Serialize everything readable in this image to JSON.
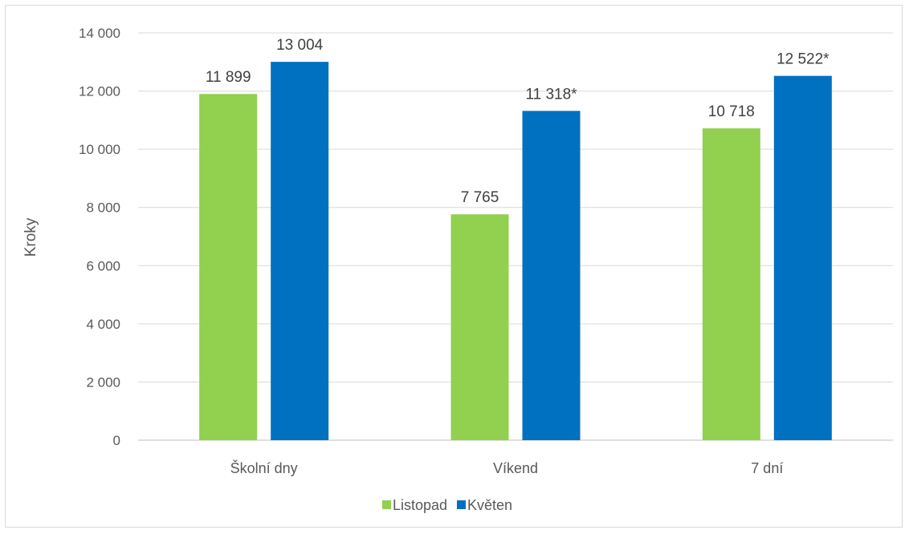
{
  "chart_data": {
    "type": "bar",
    "categories": [
      "Školní dny",
      "Víkend",
      "7 dní"
    ],
    "series": [
      {
        "name": "Listopad",
        "color": "#92d050",
        "values": [
          11899,
          7765,
          10718
        ],
        "labels": [
          "11 899",
          "7 765",
          "10 718"
        ]
      },
      {
        "name": "Květen",
        "color": "#0070c0",
        "values": [
          13004,
          11318,
          12522
        ],
        "labels": [
          "13 004",
          "11 318*",
          "12 522*"
        ]
      }
    ],
    "ylabel": "Kroky",
    "ylim": [
      0,
      14000
    ],
    "yticks": [
      0,
      2000,
      4000,
      6000,
      8000,
      10000,
      12000,
      14000
    ],
    "ytick_labels": [
      "0",
      "2 000",
      "4 000",
      "6 000",
      "8 000",
      "10 000",
      "12 000",
      "14 000"
    ],
    "grid": true,
    "legend": "bottom"
  }
}
